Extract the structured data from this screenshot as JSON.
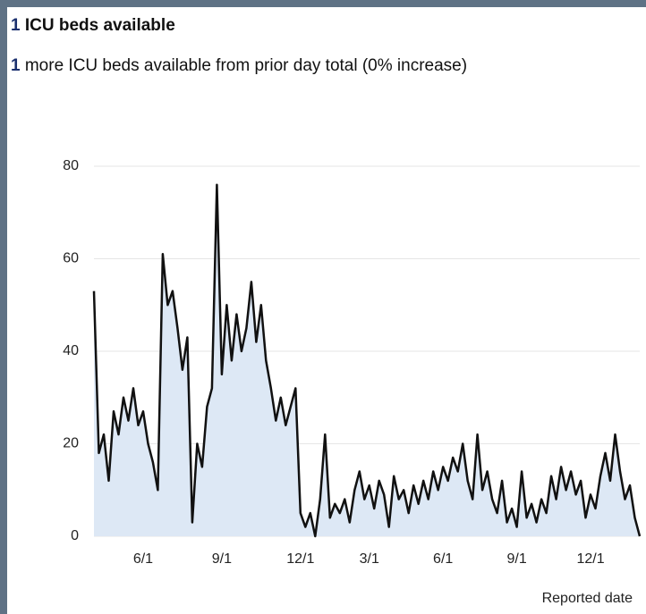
{
  "header": {
    "value": 1,
    "title": "ICU beds available"
  },
  "subheader": {
    "value": 1,
    "text": "more ICU beds available from prior day total (0% increase)"
  },
  "chart_data": {
    "type": "line",
    "x_label": "Reported date",
    "categories": [
      null,
      null,
      null,
      null,
      null,
      null,
      null,
      null,
      null,
      null,
      "6/1",
      null,
      null,
      null,
      null,
      null,
      null,
      null,
      null,
      null,
      null,
      null,
      null,
      null,
      null,
      null,
      "9/1",
      null,
      null,
      null,
      null,
      null,
      null,
      null,
      null,
      null,
      null,
      null,
      null,
      null,
      null,
      null,
      "12/1",
      null,
      null,
      null,
      null,
      null,
      null,
      null,
      null,
      null,
      null,
      null,
      null,
      null,
      "3/1",
      null,
      null,
      null,
      null,
      null,
      null,
      null,
      null,
      null,
      null,
      null,
      null,
      null,
      null,
      "6/1",
      null,
      null,
      null,
      null,
      null,
      null,
      null,
      null,
      null,
      null,
      null,
      null,
      null,
      null,
      "9/1",
      null,
      null,
      null,
      null,
      null,
      null,
      null,
      null,
      null,
      null,
      null,
      null,
      null,
      null,
      "12/1",
      null,
      null,
      null,
      null,
      null,
      null,
      null,
      null,
      null,
      null
    ],
    "series": [
      {
        "name": "ICU beds available",
        "color": "#111111",
        "fill": "#dde8f5",
        "values": [
          53,
          18,
          22,
          12,
          27,
          22,
          30,
          25,
          32,
          24,
          27,
          20,
          16,
          10,
          61,
          50,
          53,
          45,
          36,
          43,
          3,
          20,
          15,
          28,
          32,
          76,
          35,
          50,
          38,
          48,
          40,
          45,
          55,
          42,
          50,
          38,
          32,
          25,
          30,
          24,
          28,
          32,
          5,
          2,
          5,
          0,
          8,
          22,
          4,
          7,
          5,
          8,
          3,
          10,
          14,
          8,
          11,
          6,
          12,
          9,
          2,
          13,
          8,
          10,
          5,
          11,
          7,
          12,
          8,
          14,
          10,
          15,
          12,
          17,
          14,
          20,
          12,
          8,
          22,
          10,
          14,
          8,
          5,
          12,
          3,
          6,
          2,
          14,
          4,
          7,
          3,
          8,
          5,
          13,
          8,
          15,
          10,
          14,
          9,
          12,
          4,
          9,
          6,
          13,
          18,
          12,
          22,
          14,
          8,
          11,
          4,
          0
        ]
      }
    ],
    "ylim": [
      0,
      80
    ],
    "yticks": [
      0,
      20,
      40,
      60,
      80
    ],
    "grid": true
  }
}
